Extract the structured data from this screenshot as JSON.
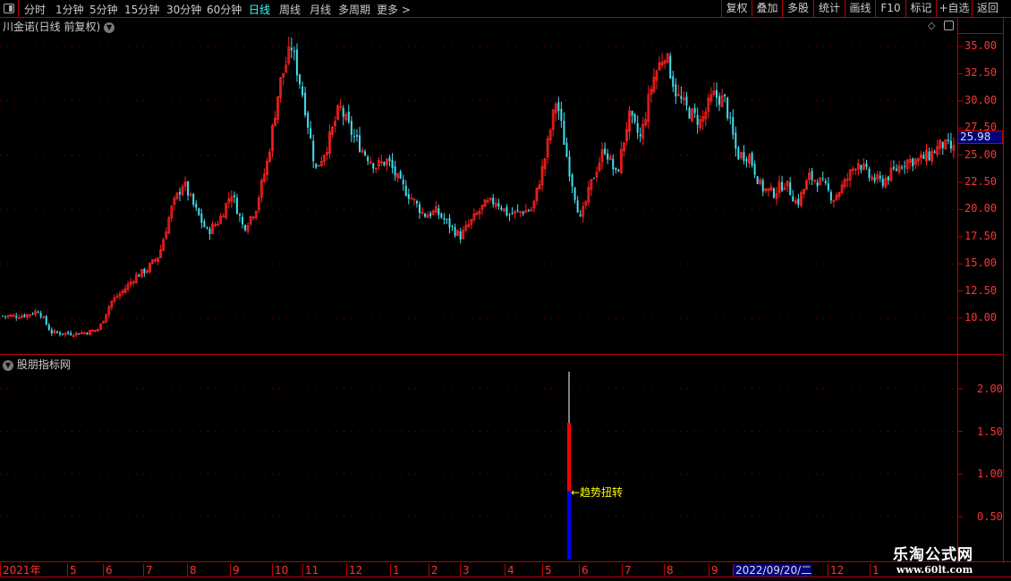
{
  "toolbar": {
    "periods": [
      "分时",
      "1分钟",
      "5分钟",
      "15分钟",
      "30分钟",
      "60分钟",
      "日线",
      "周线",
      "月线",
      "多周期",
      "更多 >"
    ],
    "active_period": "日线",
    "right_buttons": [
      "复权",
      "叠加",
      "多股",
      "统计",
      "画线",
      "F10",
      "标记",
      "+自选",
      "返回"
    ]
  },
  "main_pane": {
    "title": "川金诺(日线 前复权)",
    "current_price": "25.98",
    "y_ticks": [
      "35.00",
      "32.50",
      "30.00",
      "27.50",
      "25.00",
      "22.50",
      "20.00",
      "17.50",
      "15.00",
      "12.50",
      "10.00"
    ]
  },
  "indicator_pane": {
    "title": "股朋指标网",
    "y_ticks": [
      "2.00",
      "1.50",
      "1.00",
      "0.50"
    ],
    "annotation": "←趋势扭转"
  },
  "time_axis": {
    "labels": [
      "2021年",
      "5",
      "6",
      "7",
      "8",
      "9",
      "10",
      "11",
      "12",
      "1",
      "2",
      "3",
      "4",
      "5",
      "6",
      "7",
      "8",
      "9",
      "2022/09/20/二",
      "12",
      "1"
    ],
    "selected": "2022/09/20/二"
  },
  "watermark": {
    "name": "乐淘公式网",
    "url": "www.60lt.com"
  },
  "colors": {
    "up": "#ff2020",
    "down": "#40e0f0",
    "axis": "#bb0000",
    "grid": "#880000",
    "signal_low": "#0000ff",
    "signal_mid": "#ff0000",
    "signal_high": "#ffffff",
    "annotation": "#ffff00"
  },
  "chart_data": [
    {
      "type": "candlestick",
      "ylim": [
        7.5,
        37.5
      ],
      "close_samples": [
        10.2,
        10.2,
        10.3,
        10.7,
        8.7,
        8.6,
        8.6,
        8.7,
        9.0,
        11.5,
        12.5,
        13.8,
        14.5,
        15.8,
        20,
        22.5,
        20,
        17.9,
        19,
        21.6,
        18.3,
        20,
        24.5,
        31.5,
        35,
        30.2,
        23.6,
        26,
        29.4,
        27,
        25.3,
        24,
        24.5,
        22.4,
        21,
        19.5,
        19.8,
        18.7,
        17.5,
        19,
        20.4,
        20.8,
        19.5,
        19.8,
        20,
        24.5,
        30.2,
        24,
        19,
        22.8,
        25.7,
        23,
        28.6,
        26.5,
        31.9,
        34.5,
        30.5,
        29,
        28,
        30.5,
        30,
        25,
        25,
        22,
        21.5,
        22.5,
        20.5,
        23,
        22.5,
        21,
        22.5,
        24.5,
        23,
        22.5,
        23.5,
        24.5,
        24.5,
        25,
        26,
        25.5
      ]
    },
    {
      "type": "bar",
      "ylim": [
        0,
        2.4
      ],
      "segments": [
        {
          "from": 0,
          "to": 0.8,
          "color": "blue"
        },
        {
          "from": 0.8,
          "to": 1.6,
          "color": "red"
        },
        {
          "from": 1.6,
          "to": 2.2,
          "color": "white"
        }
      ],
      "annotation": "←趋势扭转"
    }
  ]
}
